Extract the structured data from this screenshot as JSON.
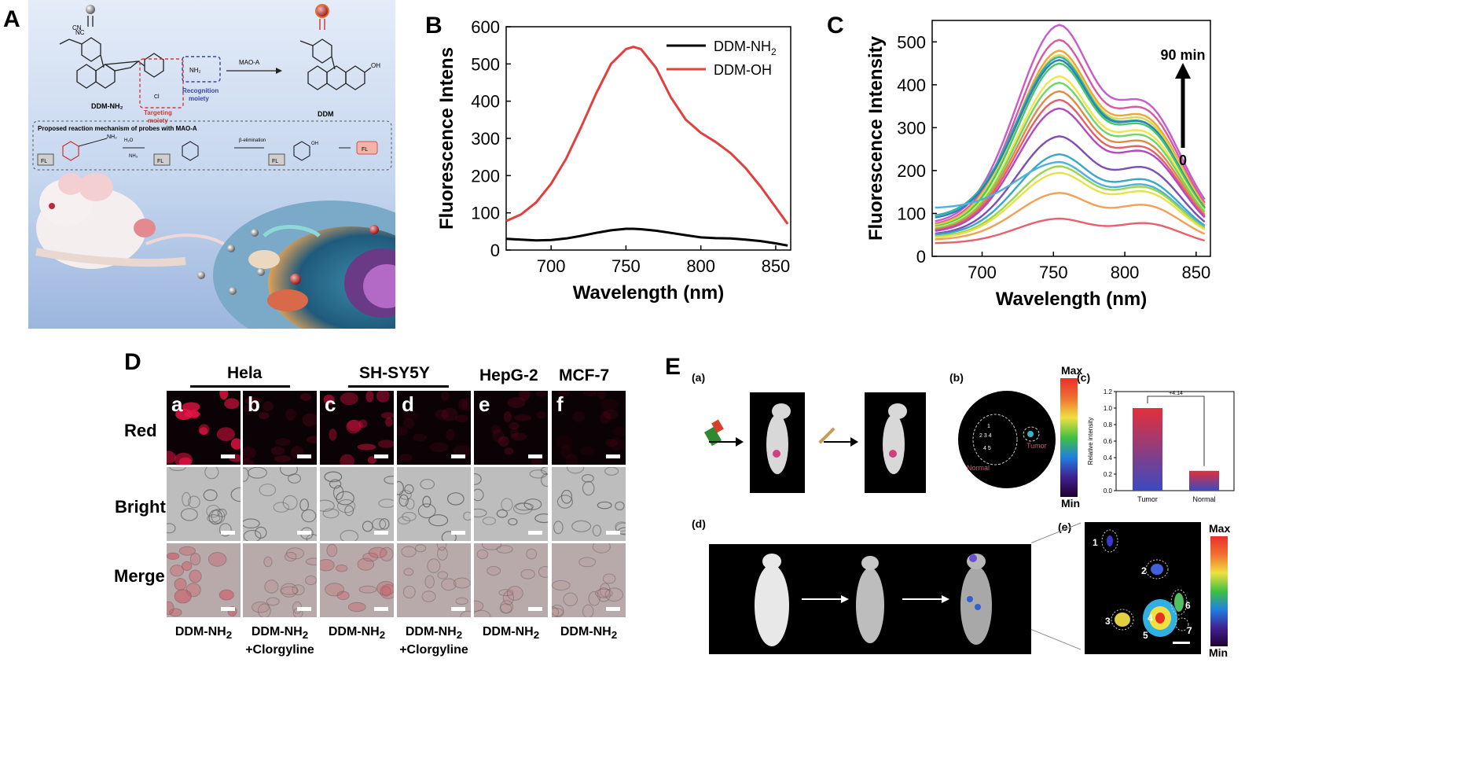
{
  "panels": {
    "A": {
      "letter": "A",
      "molecule_left": "DDM-NH",
      "molecule_left_sub": "2",
      "molecule_right": "DDM",
      "arrow_label": "MAO-A",
      "targeting": "Targeting moiety",
      "recognition": "Recognition moiety",
      "mechanism_title": "Proposed reaction mechanism of probes with MAO-A",
      "fl_box": "FL",
      "nh2": "NH2",
      "h2o": "H2O",
      "nh3": "NH3",
      "beta": "β-elimination",
      "o": "O",
      "oh": "OH",
      "cl": "Cl",
      "cn": "CN",
      "nc": "NC"
    },
    "B": {
      "letter": "B"
    },
    "C": {
      "letter": "C",
      "arrow_top": "90 min",
      "arrow_bottom": "0"
    },
    "D": {
      "letter": "D",
      "col_headers": [
        "Hela",
        "SH-SY5Y",
        "HepG-2",
        "MCF-7"
      ],
      "row_labels": [
        "Red",
        "Bright",
        "Merge"
      ],
      "cell_tags": [
        "a",
        "b",
        "c",
        "d",
        "e",
        "f"
      ],
      "bottom_labels": [
        {
          "line1": "DDM-NH",
          "sub": "2",
          "line2": ""
        },
        {
          "line1": "DDM-NH",
          "sub": "2",
          "line2": "+Clorgyline"
        },
        {
          "line1": "DDM-NH",
          "sub": "2",
          "line2": ""
        },
        {
          "line1": "DDM-NH",
          "sub": "2",
          "line2": "+Clorgyline"
        },
        {
          "line1": "DDM-NH",
          "sub": "2",
          "line2": ""
        },
        {
          "line1": "DDM-NH",
          "sub": "2",
          "line2": ""
        }
      ]
    },
    "E": {
      "letter": "E",
      "sub_a": "(a)",
      "sub_b": "(b)",
      "sub_c": "(c)",
      "sub_d": "(d)",
      "sub_e": "(e)",
      "scale_max": "Max",
      "scale_min": "Min",
      "tumor": "Tumor",
      "normal": "Normal",
      "bar_ylabel": "Relative intensity",
      "bar_sig": "+4.14",
      "organ_numbers": [
        "1",
        "2",
        "3",
        "4",
        "5",
        "6",
        "7"
      ]
    }
  },
  "chart_data": [
    {
      "type": "line",
      "xlabel": "Wavelength (nm)",
      "ylabel": "Fluorescence Intens",
      "xlim": [
        670,
        860
      ],
      "ylim": [
        0,
        600
      ],
      "xticks": [
        700,
        750,
        800,
        850
      ],
      "yticks": [
        0,
        100,
        200,
        300,
        400,
        500,
        600
      ],
      "legend_position": "top-right",
      "x": [
        670,
        680,
        690,
        700,
        710,
        720,
        730,
        740,
        750,
        755,
        760,
        770,
        780,
        790,
        800,
        810,
        820,
        830,
        840,
        850,
        858
      ],
      "series": [
        {
          "name": "DDM-NH2",
          "color": "#000000",
          "values": [
            30,
            28,
            26,
            27,
            31,
            38,
            46,
            53,
            57,
            57,
            56,
            52,
            46,
            40,
            34,
            32,
            31,
            28,
            24,
            18,
            12
          ]
        },
        {
          "name": "DDM-OH",
          "color": "#e0413f",
          "values": [
            78,
            96,
            128,
            178,
            245,
            330,
            420,
            500,
            540,
            546,
            540,
            490,
            410,
            350,
            315,
            290,
            260,
            220,
            170,
            115,
            70
          ]
        }
      ]
    },
    {
      "type": "line",
      "xlabel": "Wavelength (nm)",
      "ylabel": "Fluorescence Intensity",
      "xlim": [
        665,
        860
      ],
      "ylim": [
        0,
        550
      ],
      "xticks": [
        700,
        750,
        800,
        850
      ],
      "yticks": [
        0,
        100,
        200,
        300,
        400,
        500
      ],
      "peak_x": 755,
      "series": [
        {
          "peak": 540,
          "start": 75,
          "shoulder": 0.78,
          "end": 55,
          "color": "#c65bc9"
        },
        {
          "peak": 505,
          "start": 70,
          "shoulder": 0.8,
          "end": 50,
          "color": "#d65aa0"
        },
        {
          "peak": 480,
          "start": 68,
          "shoulder": 0.8,
          "end": 48,
          "color": "#f0a53a"
        },
        {
          "peak": 470,
          "start": 66,
          "shoulder": 0.8,
          "end": 46,
          "color": "#d8d84a"
        },
        {
          "peak": 465,
          "start": 90,
          "shoulder": 0.79,
          "end": 45,
          "color": "#33b0a8"
        },
        {
          "peak": 458,
          "start": 85,
          "shoulder": 0.8,
          "end": 45,
          "color": "#2e7fb8"
        },
        {
          "peak": 450,
          "start": 64,
          "shoulder": 0.8,
          "end": 44,
          "color": "#45c86a"
        },
        {
          "peak": 420,
          "start": 62,
          "shoulder": 0.81,
          "end": 43,
          "color": "#f2e54a"
        },
        {
          "peak": 405,
          "start": 60,
          "shoulder": 0.81,
          "end": 42,
          "color": "#6fd66b"
        },
        {
          "peak": 385,
          "start": 58,
          "shoulder": 0.81,
          "end": 40,
          "color": "#e08a45"
        },
        {
          "peak": 365,
          "start": 57,
          "shoulder": 0.81,
          "end": 39,
          "color": "#e45f6a"
        },
        {
          "peak": 345,
          "start": 55,
          "shoulder": 0.82,
          "end": 38,
          "color": "#b448c0"
        },
        {
          "peak": 280,
          "start": 50,
          "shoulder": 0.84,
          "end": 36,
          "color": "#7b4fb3"
        },
        {
          "peak": 238,
          "start": 48,
          "shoulder": 0.84,
          "end": 34,
          "color": "#3aa7c9"
        },
        {
          "peak": 220,
          "start": 112,
          "shoulder": 0.84,
          "end": 33,
          "color": "#4fb0e0"
        },
        {
          "peak": 210,
          "start": 44,
          "shoulder": 0.85,
          "end": 32,
          "color": "#9bd64a"
        },
        {
          "peak": 195,
          "start": 42,
          "shoulder": 0.85,
          "end": 31,
          "color": "#e8e24a"
        },
        {
          "peak": 148,
          "start": 38,
          "shoulder": 0.86,
          "end": 28,
          "color": "#f0a155"
        },
        {
          "peak": 88,
          "start": 30,
          "shoulder": 0.88,
          "end": 22,
          "color": "#e8606c"
        }
      ]
    },
    {
      "type": "bar",
      "categories": [
        "Tumor",
        "Normal"
      ],
      "values": [
        1.0,
        0.24
      ],
      "ylabel": "Relative intensity",
      "ylim": [
        0,
        1.2
      ],
      "yticks": [
        0.0,
        0.2,
        0.4,
        0.6,
        0.8,
        1.0,
        1.2
      ]
    }
  ]
}
